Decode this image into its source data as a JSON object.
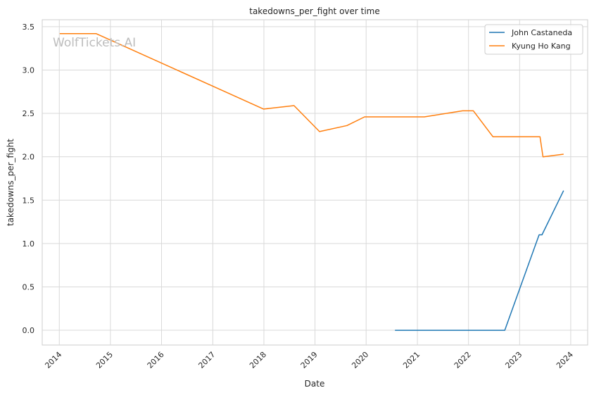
{
  "chart_data": {
    "type": "line",
    "title": "takedowns_per_fight over time",
    "xlabel": "Date",
    "ylabel": "takedowns_per_fight",
    "watermark": "WolfTickets.AI",
    "xlim": [
      "2013-09-01",
      "2024-05-01"
    ],
    "ylim": [
      -0.17,
      3.58
    ],
    "x_ticks": [
      "2014",
      "2015",
      "2016",
      "2017",
      "2018",
      "2019",
      "2020",
      "2021",
      "2022",
      "2023",
      "2024"
    ],
    "y_ticks": [
      "0.0",
      "0.5",
      "1.0",
      "1.5",
      "2.0",
      "2.5",
      "3.0",
      "3.5"
    ],
    "grid": true,
    "legend_position": "top-right",
    "series": [
      {
        "name": "John Castaneda",
        "color": "#1f77b4",
        "points": [
          [
            "2020-07-25",
            0.0
          ],
          [
            "2021-06-01",
            0.0
          ],
          [
            "2022-09-17",
            0.0
          ],
          [
            "2023-05-20",
            1.1
          ],
          [
            "2023-06-10",
            1.1
          ],
          [
            "2023-11-11",
            1.61
          ]
        ]
      },
      {
        "name": "Kyung Ho Kang",
        "color": "#ff7f0e",
        "points": [
          [
            "2014-01-04",
            3.42
          ],
          [
            "2014-09-20",
            3.42
          ],
          [
            "2017-12-30",
            2.55
          ],
          [
            "2018-08-04",
            2.59
          ],
          [
            "2019-02-02",
            2.29
          ],
          [
            "2019-08-17",
            2.36
          ],
          [
            "2019-12-21",
            2.46
          ],
          [
            "2021-02-20",
            2.46
          ],
          [
            "2021-11-20",
            2.53
          ],
          [
            "2022-02-05",
            2.53
          ],
          [
            "2022-06-25",
            2.23
          ],
          [
            "2023-05-27",
            2.23
          ],
          [
            "2023-06-17",
            2.0
          ],
          [
            "2023-11-11",
            2.03
          ]
        ]
      }
    ]
  }
}
